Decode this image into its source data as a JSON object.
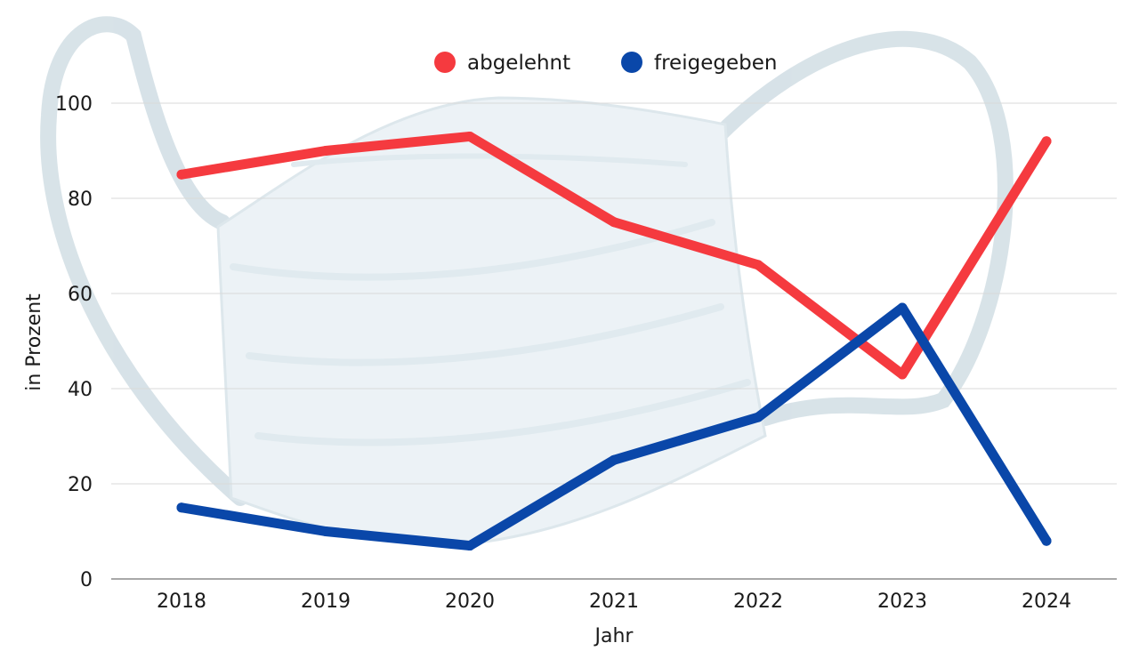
{
  "chart_data": {
    "type": "line",
    "xlabel": "Jahr",
    "ylabel": "in Prozent",
    "categories": [
      "2018",
      "2019",
      "2020",
      "2021",
      "2022",
      "2023",
      "2024"
    ],
    "ylim": [
      0,
      100
    ],
    "yticks": [
      0,
      20,
      40,
      60,
      80,
      100
    ],
    "grid": true,
    "legend_position": "top-center",
    "series": [
      {
        "name": "abgelehnt",
        "color": "#f53a3f",
        "values": [
          85,
          90,
          93,
          75,
          66,
          43,
          92
        ]
      },
      {
        "name": "freigegeben",
        "color": "#0a47a9",
        "values": [
          15,
          10,
          7,
          25,
          34,
          57,
          8
        ]
      }
    ],
    "background_illustration": "face-mask"
  }
}
